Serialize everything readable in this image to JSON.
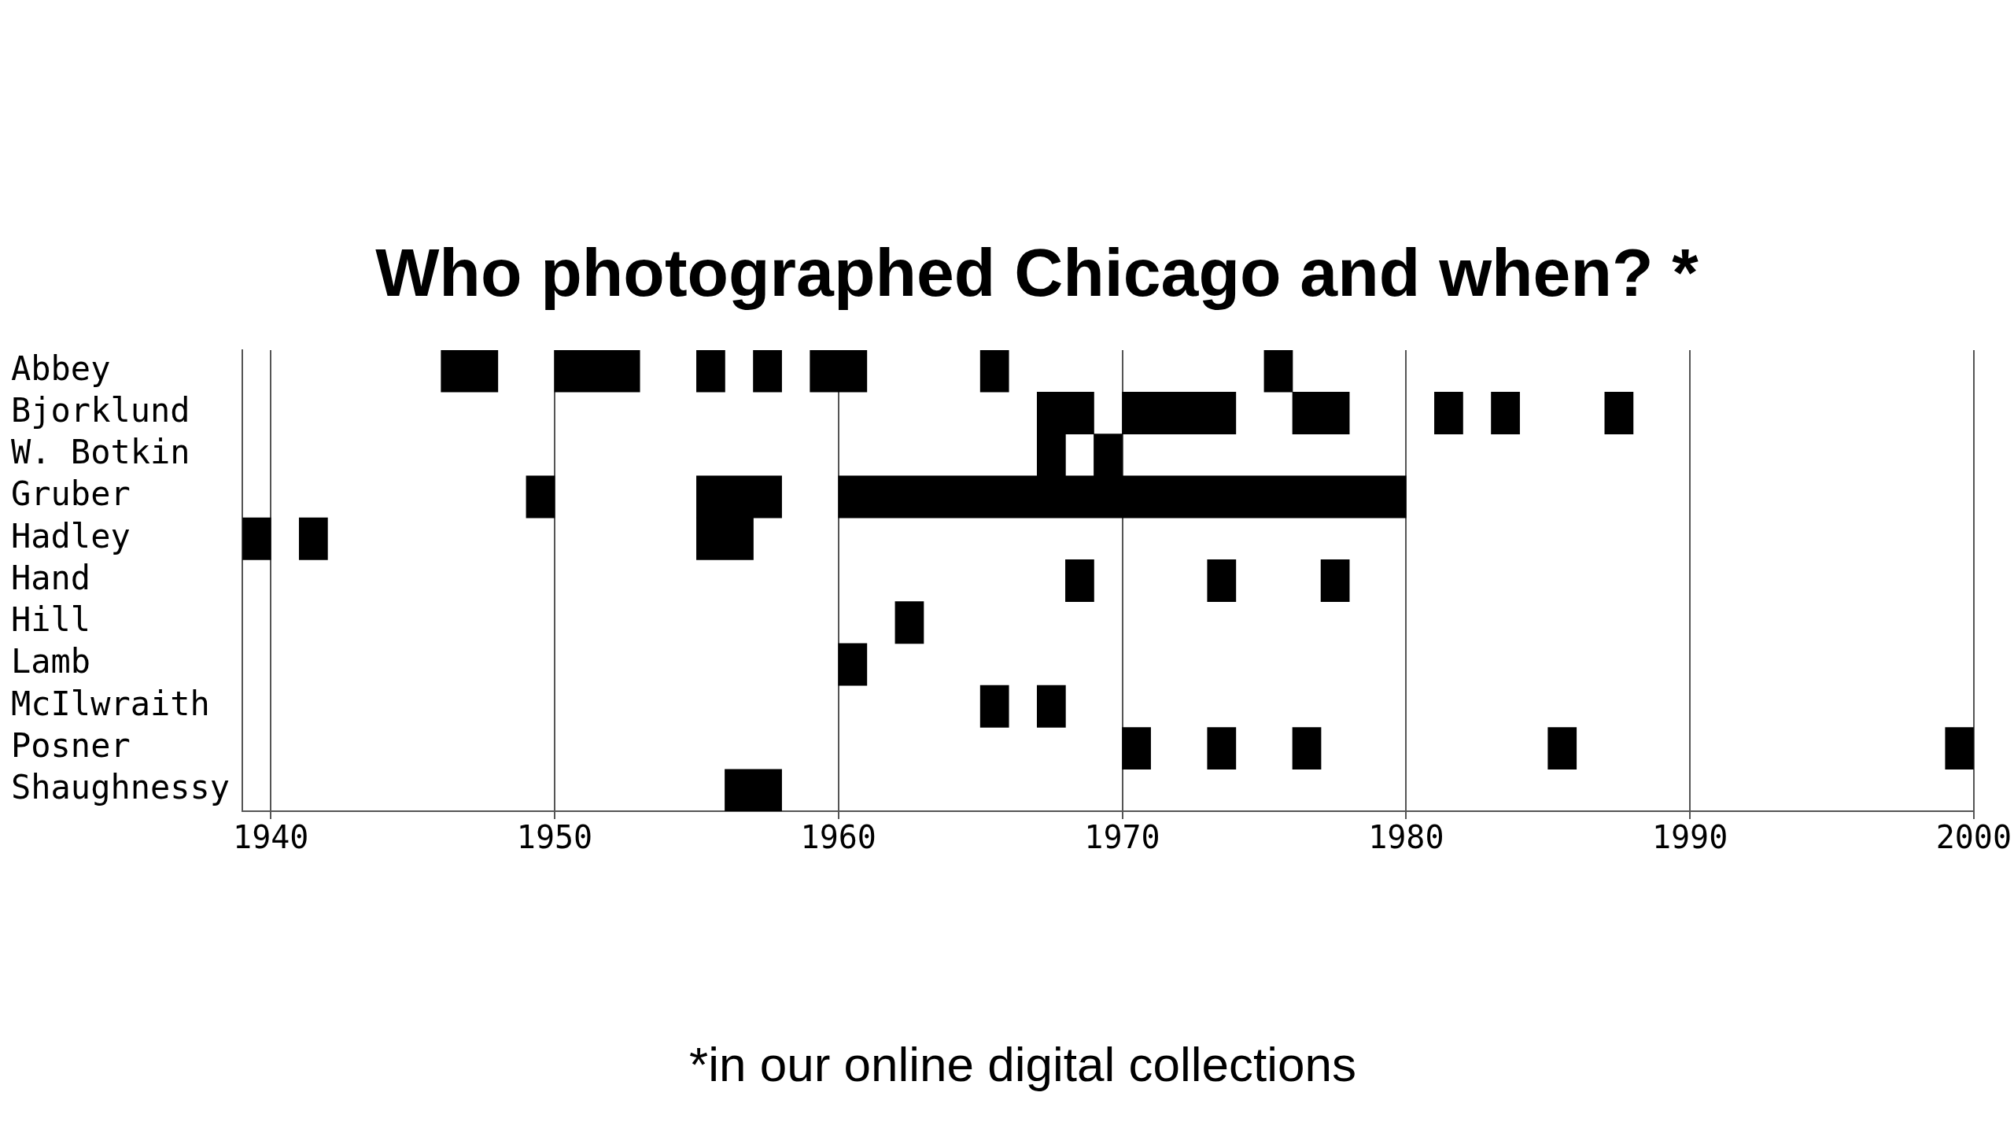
{
  "chart_data": {
    "type": "bar",
    "orientation": "horizontal",
    "title": "Who photographed Chicago and when? *",
    "annotations": [
      "*in our online digital collections"
    ],
    "categories": [
      "Abbey",
      "Bjorklund",
      "W. Botkin",
      "Gruber",
      "Hadley",
      "Hand",
      "Hill",
      "Lamb",
      "McIlwraith",
      "Posner",
      "Shaughnessy"
    ],
    "xlim": [
      1939,
      2000
    ],
    "xticks": [
      1940,
      1950,
      1960,
      1970,
      1980,
      1990,
      2000
    ],
    "grid": "x",
    "legend": false,
    "series": [
      {
        "color": "#000000",
        "base": [
          1946,
          1967,
          1967,
          1949,
          1939,
          1968,
          1962,
          1960,
          1965,
          1970,
          1956
        ],
        "values": [
          2,
          2,
          1,
          1,
          1,
          1,
          1,
          1,
          1,
          1,
          2
        ]
      },
      {
        "color": "#000000",
        "base": [
          1950,
          1970,
          1969,
          1955,
          1941,
          1973,
          null,
          null,
          1967,
          1973,
          null
        ],
        "values": [
          3,
          4,
          1,
          3,
          1,
          1,
          null,
          null,
          1,
          1,
          null
        ]
      },
      {
        "color": "#000000",
        "base": [
          1955,
          1976,
          null,
          1960,
          1955,
          1977,
          null,
          null,
          null,
          1976,
          null
        ],
        "values": [
          1,
          2,
          null,
          20,
          2,
          1,
          null,
          null,
          null,
          1,
          null
        ]
      },
      {
        "color": "#000000",
        "base": [
          1957,
          1981,
          null,
          null,
          null,
          null,
          null,
          null,
          null,
          1985,
          null
        ],
        "values": [
          1,
          1,
          null,
          null,
          null,
          null,
          null,
          null,
          null,
          1,
          null
        ]
      },
      {
        "color": "#000000",
        "base": [
          1959,
          1983,
          null,
          null,
          null,
          null,
          null,
          null,
          null,
          1999,
          null
        ],
        "values": [
          2,
          1,
          null,
          null,
          null,
          null,
          null,
          null,
          null,
          1,
          null
        ]
      },
      {
        "color": "#000000",
        "base": [
          1965,
          1987,
          null,
          null,
          null,
          null,
          null,
          null,
          null,
          null,
          null
        ],
        "values": [
          1,
          1,
          null,
          null,
          null,
          null,
          null,
          null,
          null,
          null,
          null
        ]
      },
      {
        "color": "#000000",
        "base": [
          1975,
          null,
          null,
          null,
          null,
          null,
          null,
          null,
          null,
          null,
          null
        ],
        "values": [
          1,
          null,
          null,
          null,
          null,
          null,
          null,
          null,
          null,
          null,
          null
        ]
      }
    ]
  }
}
